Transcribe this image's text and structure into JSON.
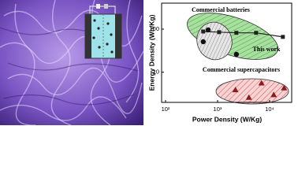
{
  "chart_data": {
    "type": "scatter",
    "log_x": true,
    "log_y": true,
    "x_label": "Power Density (W/Kg)",
    "y_label": "Energy Density (Wh/Kg)",
    "xlim": [
      84,
      26600
    ],
    "ylim": [
      2,
      400
    ],
    "xticks": [
      {
        "value": 100,
        "label": "10²"
      },
      {
        "value": 1000,
        "label": "10³"
      },
      {
        "value": 10000,
        "label": "10⁴"
      }
    ],
    "yticks": [
      10,
      100
    ],
    "series": [
      {
        "name": "This work",
        "color": "#222222",
        "marker": "square",
        "connected": true,
        "x": [
          530,
          1070,
          2300,
          5500,
          18000
        ],
        "values": [
          88,
          85,
          82,
          82,
          66
        ]
      },
      {
        "name": "Commercial batteries",
        "color": "#111111",
        "marker": "circle",
        "connected": false,
        "x": [
          530,
          660,
          2300
        ],
        "values": [
          51,
          96,
          26
        ]
      },
      {
        "name": "Commercial supercapacitors",
        "color": "#8b1a1a",
        "marker": "triangle",
        "connected": false,
        "x": [
          2200,
          4000,
          7000,
          12000,
          19000
        ],
        "values": [
          3.9,
          2.6,
          5.6,
          3.0,
          4.3
        ]
      }
    ]
  }
}
